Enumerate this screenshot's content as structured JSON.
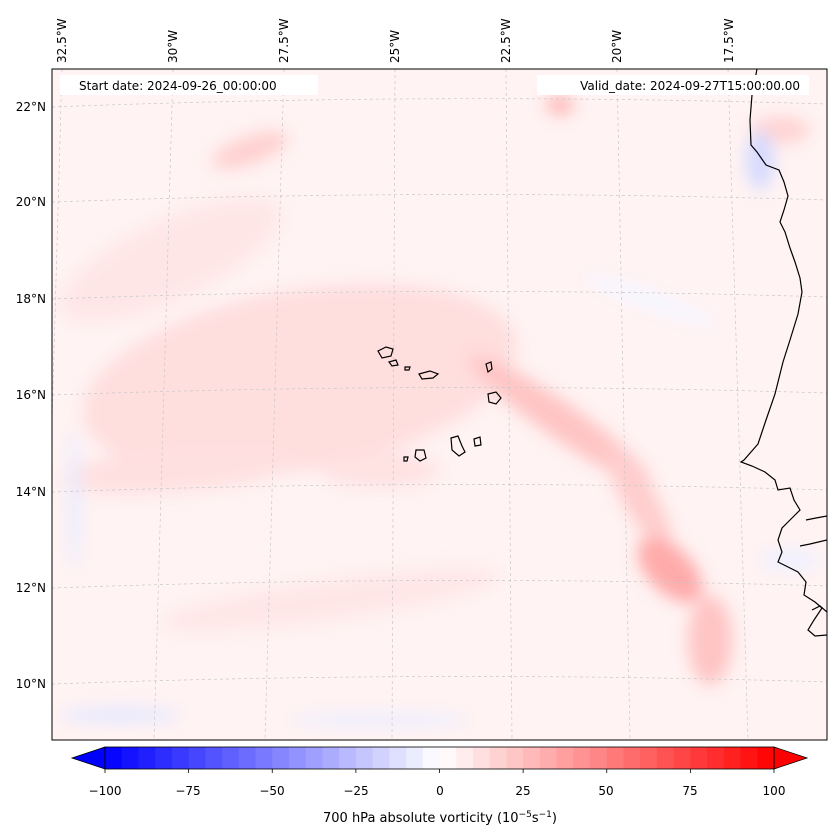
{
  "header": {
    "start_date": "Start date: 2024-09-26_00:00:00",
    "valid_date": "Valid_date: 2024-09-27T15:00:00.00"
  },
  "map": {
    "lon_labels": [
      "32.5°W",
      "30°W",
      "27.5°W",
      "25°W",
      "22.5°W",
      "20°W",
      "17.5°W"
    ],
    "lat_labels": [
      "22°N",
      "20°N",
      "18°N",
      "16°N",
      "14°N",
      "12°N",
      "10°N"
    ],
    "colors": {
      "coastline": "#000000",
      "grid": "#c8c8c8",
      "vort_low": "#0000ff",
      "vort_zero": "#ffffff",
      "vort_high": "#ff0000"
    }
  },
  "colorbar": {
    "ticks": [
      "−100",
      "−75",
      "−50",
      "−25",
      "0",
      "25",
      "50",
      "75",
      "100"
    ],
    "min": -100,
    "max": 100,
    "label_main": "700 hPa absolute vorticity (10",
    "label_sup1": "−5",
    "label_mid": "s",
    "label_sup2": "−1",
    "label_end": ")"
  }
}
